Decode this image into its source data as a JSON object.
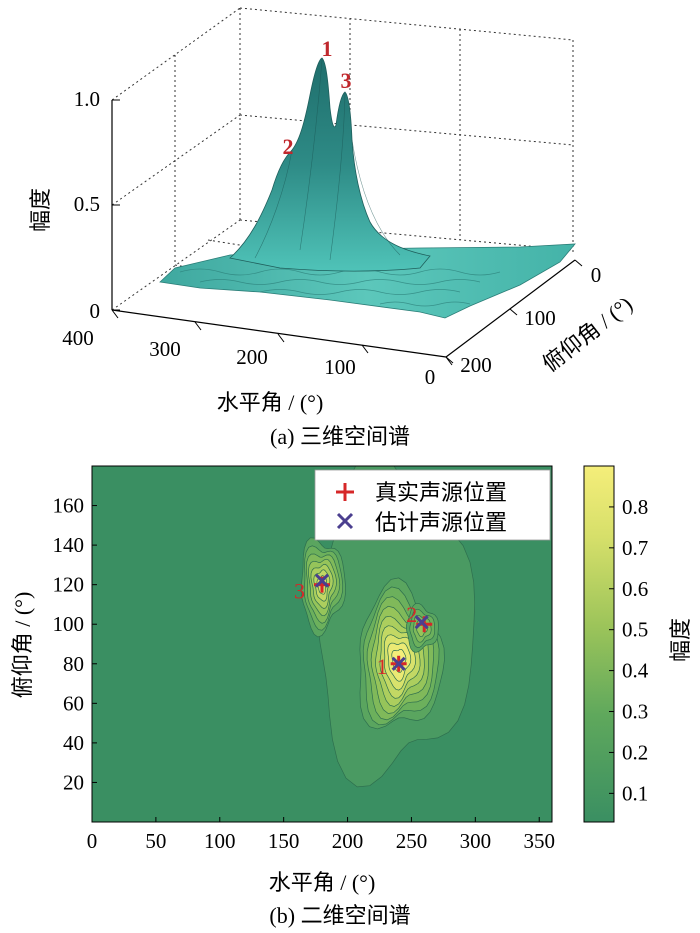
{
  "chart_data": [
    {
      "type": "surface",
      "caption": "(a) 三维空间谱",
      "xlabel": "水平角 / (°)",
      "ylabel": "俯仰角 / (°)",
      "zlabel": "幅度",
      "x_ticks": [
        "400",
        "300",
        "200",
        "100",
        "0"
      ],
      "y_ticks": [
        "0",
        "100",
        "200"
      ],
      "z_ticks": [
        "0",
        "0.5",
        "1.0"
      ],
      "zlim": [
        0,
        1.0
      ],
      "xlim": [
        0,
        400
      ],
      "ylim": [
        0,
        200
      ],
      "peaks": [
        {
          "label": "1",
          "azimuth": 240,
          "elevation": 80,
          "amplitude": 1.0
        },
        {
          "label": "2",
          "azimuth": 260,
          "elevation": 100,
          "amplitude": 0.65
        },
        {
          "label": "3",
          "azimuth": 180,
          "elevation": 120,
          "amplitude": 0.9
        }
      ],
      "colors": {
        "surface": "#2e8b86",
        "surface_light": "#4fc3b8"
      }
    },
    {
      "type": "contour",
      "caption": "(b) 二维空间谱",
      "xlabel": "水平角 / (°)",
      "ylabel": "俯仰角 / (°)",
      "colorbar_label": "幅度",
      "xlim": [
        0,
        360
      ],
      "ylim": [
        0,
        180
      ],
      "x_ticks": [
        0,
        50,
        100,
        150,
        200,
        250,
        300,
        350
      ],
      "y_ticks": [
        20,
        40,
        60,
        80,
        100,
        120,
        140,
        160
      ],
      "colorbar_ticks": [
        0.1,
        0.2,
        0.3,
        0.4,
        0.5,
        0.6,
        0.7,
        0.8
      ],
      "colorbar_range": [
        0.03,
        0.9
      ],
      "legend": {
        "position": "top-right",
        "entries": [
          {
            "marker": "plus",
            "label": "真实声源位置",
            "color": "#d62728"
          },
          {
            "marker": "x",
            "label": "估计声源位置",
            "color": "#4b3f8f"
          }
        ]
      },
      "sources": [
        {
          "label": "1",
          "true": [
            240,
            80
          ],
          "estimated": [
            240,
            80
          ]
        },
        {
          "label": "2",
          "true": [
            260,
            100
          ],
          "estimated": [
            258,
            101
          ]
        },
        {
          "label": "3",
          "true": [
            180,
            120
          ],
          "estimated": [
            180,
            122
          ]
        }
      ],
      "colors": {
        "low": "#3a8f62",
        "mid": "#9cc45a",
        "high": "#f5ee7a"
      }
    }
  ]
}
